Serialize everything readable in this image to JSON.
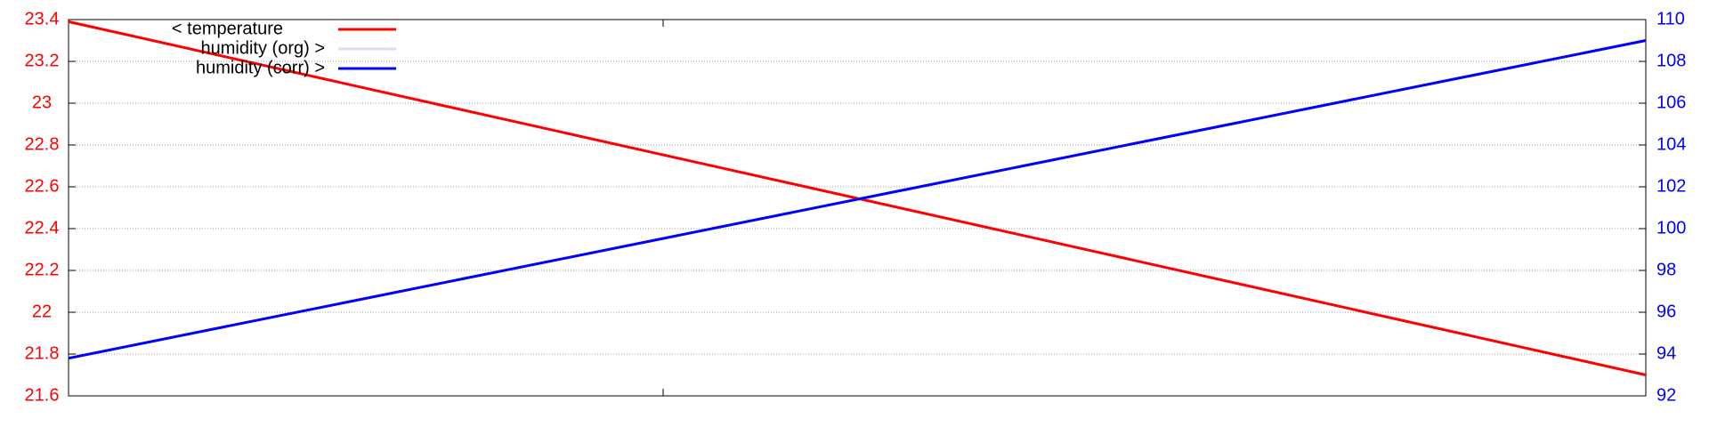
{
  "chart_data": {
    "type": "line",
    "series": [
      {
        "name": "< temperature",
        "color": "#ff0000",
        "values": [
          23.39,
          21.7
        ]
      },
      {
        "name": "humidity (org) >",
        "color": "#dcdcf0",
        "values": [
          93.8,
          109
        ],
        "axis": "y2"
      },
      {
        "name": "humidity (corr) >",
        "color": "#0000ff",
        "values": [
          93.8,
          109
        ],
        "axis": "y2"
      }
    ],
    "ylim": [
      21.6,
      23.4
    ],
    "yticks": [
      21.6,
      21.8,
      22,
      22.2,
      22.4,
      22.6,
      22.8,
      23,
      23.2,
      23.4
    ],
    "y2lim": [
      92,
      110
    ],
    "y2ticks": [
      92,
      94,
      96,
      98,
      100,
      102,
      104,
      106,
      108,
      110
    ],
    "ycolor": "#ff0000",
    "y2color": "#0000ff",
    "grid": true,
    "legend": "top-left"
  }
}
